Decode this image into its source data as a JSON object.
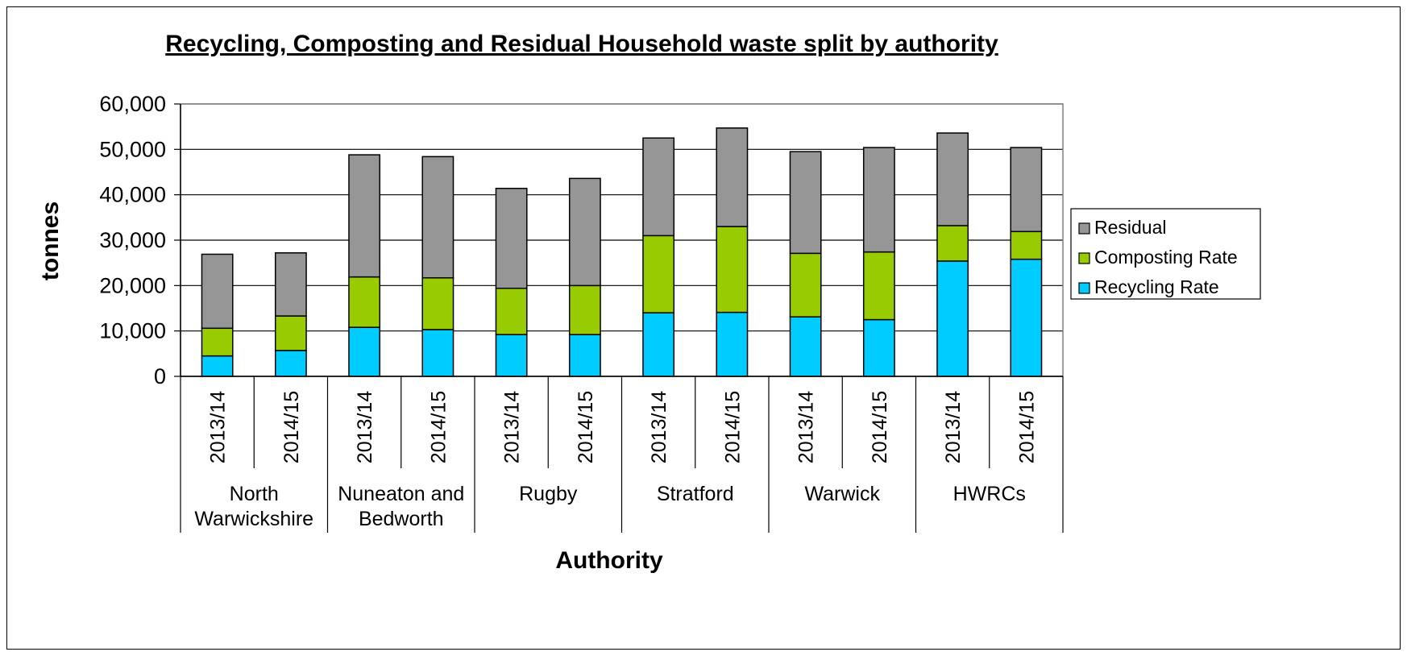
{
  "chart_data": {
    "type": "bar",
    "stacked": true,
    "title": "Recycling, Composting and Residual Household waste split by authority",
    "xlabel": "Authority",
    "ylabel": "tonnes",
    "ylim": [
      0,
      60000
    ],
    "yticks": [
      0,
      10000,
      20000,
      30000,
      40000,
      50000,
      60000
    ],
    "ytick_labels": [
      "0",
      "10,000",
      "20,000",
      "30,000",
      "40,000",
      "50,000",
      "60,000"
    ],
    "grid": true,
    "legend_position": "right",
    "groups": [
      {
        "label_lines": [
          "North",
          "Warwickshire"
        ],
        "categories": [
          "2013/14",
          "2014/15"
        ]
      },
      {
        "label_lines": [
          "Nuneaton and",
          "Bedworth"
        ],
        "categories": [
          "2013/14",
          "2014/15"
        ]
      },
      {
        "label_lines": [
          "Rugby"
        ],
        "categories": [
          "2013/14",
          "2014/15"
        ]
      },
      {
        "label_lines": [
          "Stratford"
        ],
        "categories": [
          "2013/14",
          "2014/15"
        ]
      },
      {
        "label_lines": [
          "Warwick"
        ],
        "categories": [
          "2013/14",
          "2014/15"
        ]
      },
      {
        "label_lines": [
          "HWRCs"
        ],
        "categories": [
          "2013/14",
          "2014/15"
        ]
      }
    ],
    "series": [
      {
        "name": "Recycling Rate",
        "color": "#00CCFF",
        "values": [
          4500,
          5700,
          10800,
          10300,
          9200,
          9200,
          14000,
          14100,
          13100,
          12500,
          25400,
          25800
        ]
      },
      {
        "name": "Composting Rate",
        "color": "#99CC00",
        "values": [
          6100,
          7600,
          11100,
          11400,
          10200,
          10800,
          17000,
          18900,
          14000,
          14900,
          7800,
          6100
        ]
      },
      {
        "name": "Residual",
        "color": "#969696",
        "values": [
          16300,
          13900,
          26900,
          26700,
          22000,
          23600,
          21500,
          21700,
          22400,
          23000,
          20400,
          18500
        ]
      }
    ],
    "legend_order": [
      "Residual",
      "Composting Rate",
      "Recycling Rate"
    ]
  }
}
